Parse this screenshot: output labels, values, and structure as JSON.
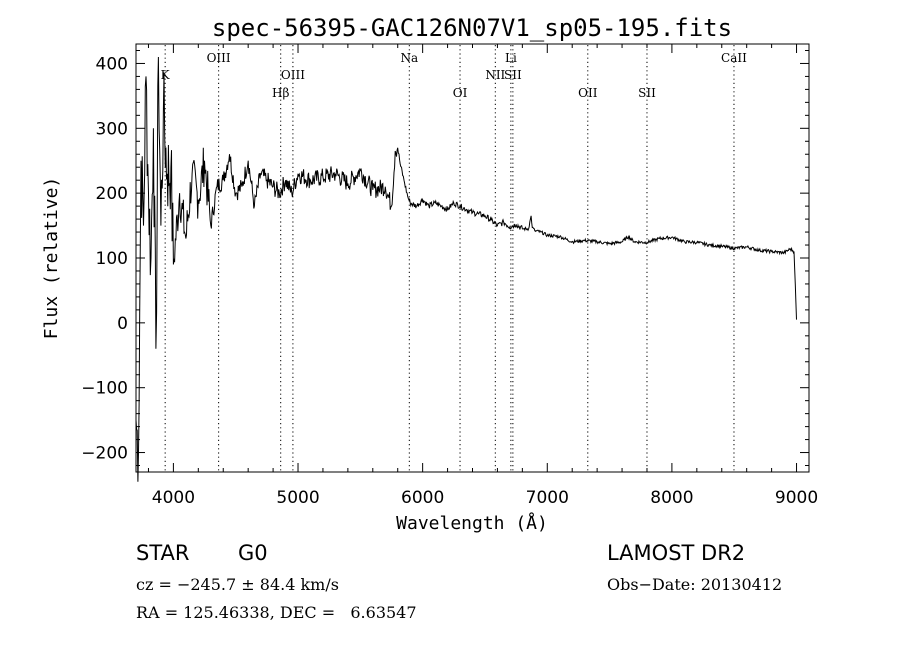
{
  "chart_data": {
    "type": "line",
    "title": "spec-56395-GAC126N07V1_sp05-195.fits",
    "xlabel": "Wavelength (Å)",
    "ylabel": "Flux (relative)",
    "xlim": [
      3700,
      9100
    ],
    "ylim": [
      -230,
      430
    ],
    "x_ticks": [
      4000,
      5000,
      6000,
      7000,
      8000,
      9000
    ],
    "y_ticks": [
      -200,
      -100,
      0,
      100,
      200,
      300,
      400
    ],
    "grid": false,
    "lines": [
      {
        "label": "K",
        "x": 3934,
        "row": 0
      },
      {
        "label": "OIII",
        "x": 4363,
        "row": -1
      },
      {
        "label": "Hβ",
        "x": 4861,
        "row": 1
      },
      {
        "label": "OIII",
        "x": 4959,
        "row": 0
      },
      {
        "label": "Na",
        "x": 5893,
        "row": -1
      },
      {
        "label": "OI",
        "x": 6300,
        "row": 1
      },
      {
        "label": "NII",
        "x": 6583,
        "row": 0
      },
      {
        "label": "Li",
        "x": 6708,
        "row": -1
      },
      {
        "label": "SII",
        "x": 6724,
        "row": 0
      },
      {
        "label": "OII",
        "x": 7325,
        "row": 1
      },
      {
        "label": "SII",
        "x": 7800,
        "row": 1
      },
      {
        "label": "CaII",
        "x": 8498,
        "row": -1
      }
    ],
    "series": [
      {
        "x": [
          3700,
          3720,
          3740,
          3760,
          3780,
          3800,
          3820,
          3840,
          3860,
          3880,
          3900,
          3920,
          3950,
          3980,
          4000,
          4050,
          4100,
          4150,
          4200,
          4250,
          4300,
          4350,
          4400,
          4450,
          4500,
          4550,
          4600,
          4650,
          4700,
          4750,
          4800,
          4850,
          4900,
          4950,
          5000,
          5100,
          5200,
          5300,
          5400,
          5500,
          5600,
          5700,
          5750,
          5780,
          5800,
          5820,
          5850,
          5880,
          5900,
          5950,
          6000,
          6050,
          6100,
          6150,
          6200,
          6250,
          6300,
          6350,
          6400,
          6450,
          6500,
          6550,
          6600,
          6650,
          6700,
          6750,
          6800,
          6850,
          6870,
          6880,
          6900,
          6950,
          7000,
          7100,
          7200,
          7300,
          7400,
          7500,
          7600,
          7650,
          7700,
          7800,
          7900,
          8000,
          8100,
          8200,
          8300,
          8400,
          8500,
          8600,
          8700,
          8800,
          8900,
          8950,
          8980,
          9000
        ],
        "y": [
          -150,
          -200,
          250,
          150,
          380,
          200,
          100,
          300,
          -40,
          410,
          150,
          330,
          230,
          240,
          90,
          200,
          130,
          230,
          190,
          250,
          150,
          210,
          220,
          260,
          200,
          210,
          250,
          180,
          230,
          220,
          210,
          200,
          220,
          200,
          230,
          220,
          225,
          230,
          215,
          235,
          205,
          210,
          180,
          265,
          270,
          245,
          220,
          195,
          185,
          180,
          190,
          180,
          185,
          180,
          175,
          185,
          180,
          175,
          170,
          168,
          165,
          158,
          150,
          155,
          148,
          152,
          145,
          145,
          165,
          147,
          142,
          140,
          135,
          133,
          125,
          127,
          125,
          122,
          125,
          133,
          125,
          124,
          130,
          132,
          125,
          124,
          120,
          118,
          115,
          117,
          112,
          110,
          108,
          114,
          110,
          5
        ]
      }
    ],
    "footer": {
      "object": "STAR",
      "subclass": "G0",
      "survey": "LAMOST DR2",
      "cz": "cz = −245.7 ± 84.4 km/s",
      "obs_date": "Obs−Date: 20130412",
      "coords": "RA = 125.46338, DEC =   6.63547"
    }
  }
}
